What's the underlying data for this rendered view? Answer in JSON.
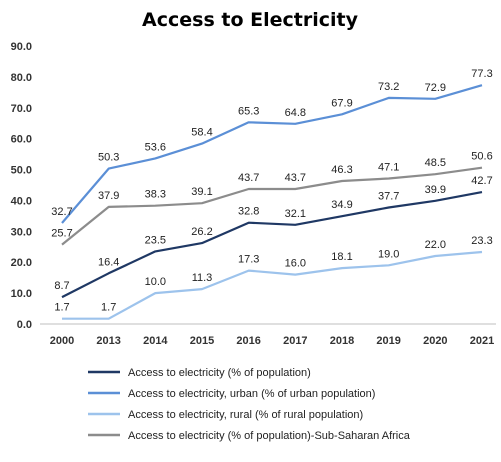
{
  "chart_data": {
    "type": "line",
    "title": "Access to Electricity",
    "categories": [
      "2000",
      "2013",
      "2014",
      "2015",
      "2016",
      "2017",
      "2018",
      "2019",
      "2020",
      "2021"
    ],
    "ylim": [
      0,
      90
    ],
    "yticks": [
      "0.0",
      "10.0",
      "20.0",
      "30.0",
      "40.0",
      "50.0",
      "60.0",
      "70.0",
      "80.0",
      "90.0"
    ],
    "grid": false,
    "legend_position": "bottom",
    "series": [
      {
        "name": "Access to electricity (% of population)",
        "color": "#1f3864",
        "values": [
          8.7,
          16.4,
          23.5,
          26.2,
          32.8,
          32.1,
          34.9,
          37.7,
          39.9,
          42.7
        ],
        "labels": [
          "8.7",
          "16.4",
          "23.5",
          "26.2",
          "32.8",
          "32.1",
          "34.9",
          "37.7",
          "39.9",
          "42.7"
        ]
      },
      {
        "name": "Access to electricity, urban (% of urban population)",
        "color": "#5b8fd6",
        "values": [
          32.7,
          50.3,
          53.6,
          58.4,
          65.3,
          64.8,
          67.9,
          73.2,
          72.9,
          77.3
        ],
        "labels": [
          "32.7",
          "50.3",
          "53.6",
          "58.4",
          "65.3",
          "64.8",
          "67.9",
          "73.2",
          "72.9",
          "77.3"
        ]
      },
      {
        "name": "Access to electricity, rural (% of rural population)",
        "color": "#9dc3ec",
        "values": [
          1.7,
          1.7,
          10.0,
          11.3,
          17.3,
          16.0,
          18.1,
          19.0,
          22.0,
          23.3
        ],
        "labels": [
          "1.7",
          "1.7",
          "10.0",
          "11.3",
          "17.3",
          "16.0",
          "18.1",
          "19.0",
          "22.0",
          "23.3"
        ]
      },
      {
        "name": "Access to electricity (% of population)-Sub-Saharan Africa",
        "color": "#8c8c8c",
        "values": [
          25.7,
          37.9,
          38.3,
          39.1,
          43.7,
          43.7,
          46.3,
          47.1,
          48.5,
          50.6
        ],
        "labels": [
          "25.7",
          "37.9",
          "38.3",
          "39.1",
          "43.7",
          "43.7",
          "46.3",
          "47.1",
          "48.5",
          "50.6"
        ]
      }
    ]
  }
}
